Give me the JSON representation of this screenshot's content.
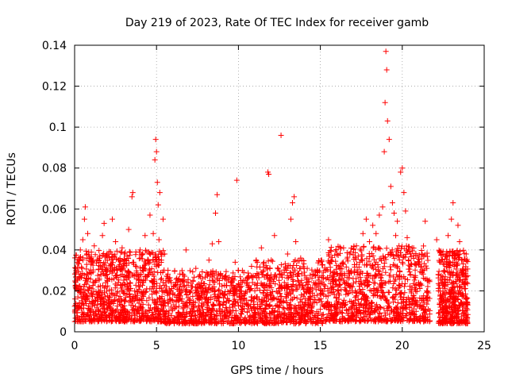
{
  "chart_data": {
    "type": "scatter",
    "title": "Day 219 of 2023, Rate Of TEC Index for receiver gamb",
    "xlabel": "GPS time / hours",
    "ylabel": "ROTI / TECUs",
    "xlim": [
      0,
      25
    ],
    "ylim": [
      0,
      0.14
    ],
    "xticks": [
      0,
      5,
      10,
      15,
      20,
      25
    ],
    "xtick_labels": [
      "0",
      "5",
      "10",
      "15",
      "20",
      "25"
    ],
    "yticks": [
      0,
      0.02,
      0.04,
      0.06,
      0.08,
      0.1,
      0.12,
      0.14
    ],
    "ytick_labels": [
      "0",
      "0.02",
      "0.04",
      "0.06",
      "0.08",
      "0.1",
      "0.12",
      "0.14"
    ],
    "grid": true,
    "marker": "+",
    "color": "#ff0000",
    "series": [
      {
        "name": "ROTI",
        "points": [
          [
            0.05,
            0.013
          ],
          [
            0.1,
            0.021
          ],
          [
            0.15,
            0.034
          ],
          [
            0.2,
            0.017
          ],
          [
            0.25,
            0.012
          ],
          [
            0.3,
            0.027
          ],
          [
            0.35,
            0.04
          ],
          [
            0.4,
            0.019
          ],
          [
            0.45,
            0.031
          ],
          [
            0.5,
            0.045
          ],
          [
            0.55,
            0.022
          ],
          [
            0.6,
            0.055
          ],
          [
            0.65,
            0.061
          ],
          [
            0.7,
            0.016
          ],
          [
            0.75,
            0.038
          ],
          [
            0.8,
            0.048
          ],
          [
            0.85,
            0.02
          ],
          [
            0.9,
            0.029
          ],
          [
            1.0,
            0.033
          ],
          [
            1.1,
            0.018
          ],
          [
            1.2,
            0.042
          ],
          [
            1.3,
            0.025
          ],
          [
            1.4,
            0.015
          ],
          [
            1.5,
            0.036
          ],
          [
            1.6,
            0.028
          ],
          [
            1.7,
            0.047
          ],
          [
            1.8,
            0.053
          ],
          [
            1.9,
            0.022
          ],
          [
            2.0,
            0.03
          ],
          [
            2.1,
            0.017
          ],
          [
            2.2,
            0.039
          ],
          [
            2.3,
            0.055
          ],
          [
            2.4,
            0.026
          ],
          [
            2.5,
            0.044
          ],
          [
            2.6,
            0.019
          ],
          [
            2.7,
            0.032
          ],
          [
            2.8,
            0.023
          ],
          [
            2.9,
            0.041
          ],
          [
            3.0,
            0.027
          ],
          [
            3.1,
            0.015
          ],
          [
            3.2,
            0.037
          ],
          [
            3.3,
            0.05
          ],
          [
            3.4,
            0.021
          ],
          [
            3.5,
            0.066
          ],
          [
            3.55,
            0.068
          ],
          [
            3.6,
            0.034
          ],
          [
            3.7,
            0.018
          ],
          [
            3.8,
            0.028
          ],
          [
            3.9,
            0.024
          ],
          [
            4.0,
            0.04
          ],
          [
            4.1,
            0.016
          ],
          [
            4.2,
            0.03
          ],
          [
            4.3,
            0.047
          ],
          [
            4.4,
            0.021
          ],
          [
            4.5,
            0.035
          ],
          [
            4.6,
            0.057
          ],
          [
            4.7,
            0.025
          ],
          [
            4.8,
            0.048
          ],
          [
            4.9,
            0.084
          ],
          [
            4.95,
            0.094
          ],
          [
            5.0,
            0.088
          ],
          [
            5.05,
            0.073
          ],
          [
            5.1,
            0.062
          ],
          [
            5.15,
            0.045
          ],
          [
            5.2,
            0.068
          ],
          [
            5.3,
            0.035
          ],
          [
            5.4,
            0.055
          ],
          [
            5.5,
            0.038
          ],
          [
            5.6,
            0.022
          ],
          [
            5.7,
            0.03
          ],
          [
            5.8,
            0.016
          ],
          [
            5.9,
            0.024
          ],
          [
            6.0,
            0.019
          ],
          [
            6.2,
            0.012
          ],
          [
            6.4,
            0.018
          ],
          [
            6.6,
            0.025
          ],
          [
            6.8,
            0.04
          ],
          [
            7.0,
            0.014
          ],
          [
            7.2,
            0.022
          ],
          [
            7.4,
            0.031
          ],
          [
            7.6,
            0.017
          ],
          [
            7.8,
            0.026
          ],
          [
            8.0,
            0.02
          ],
          [
            8.2,
            0.035
          ],
          [
            8.4,
            0.043
          ],
          [
            8.6,
            0.058
          ],
          [
            8.7,
            0.067
          ],
          [
            8.8,
            0.044
          ],
          [
            8.9,
            0.028
          ],
          [
            9.0,
            0.019
          ],
          [
            9.2,
            0.027
          ],
          [
            9.4,
            0.015
          ],
          [
            9.6,
            0.022
          ],
          [
            9.8,
            0.034
          ],
          [
            9.9,
            0.074
          ],
          [
            10.0,
            0.03
          ],
          [
            10.2,
            0.018
          ],
          [
            10.4,
            0.025
          ],
          [
            10.6,
            0.013
          ],
          [
            10.8,
            0.032
          ],
          [
            11.0,
            0.02
          ],
          [
            11.2,
            0.028
          ],
          [
            11.4,
            0.041
          ],
          [
            11.6,
            0.023
          ],
          [
            11.8,
            0.078
          ],
          [
            11.85,
            0.077
          ],
          [
            12.0,
            0.035
          ],
          [
            12.2,
            0.047
          ],
          [
            12.4,
            0.019
          ],
          [
            12.6,
            0.096
          ],
          [
            12.8,
            0.029
          ],
          [
            13.0,
            0.038
          ],
          [
            13.2,
            0.055
          ],
          [
            13.3,
            0.063
          ],
          [
            13.4,
            0.066
          ],
          [
            13.5,
            0.044
          ],
          [
            13.6,
            0.027
          ],
          [
            13.8,
            0.036
          ],
          [
            14.0,
            0.021
          ],
          [
            14.2,
            0.031
          ],
          [
            14.4,
            0.016
          ],
          [
            14.6,
            0.024
          ],
          [
            14.8,
            0.029
          ],
          [
            15.0,
            0.011
          ],
          [
            15.2,
            0.018
          ],
          [
            15.5,
            0.045
          ],
          [
            15.8,
            0.022
          ],
          [
            16.0,
            0.015
          ],
          [
            16.2,
            0.028
          ],
          [
            16.4,
            0.033
          ],
          [
            16.6,
            0.02
          ],
          [
            16.8,
            0.038
          ],
          [
            17.0,
            0.026
          ],
          [
            17.2,
            0.042
          ],
          [
            17.4,
            0.034
          ],
          [
            17.6,
            0.048
          ],
          [
            17.8,
            0.055
          ],
          [
            18.0,
            0.044
          ],
          [
            18.2,
            0.052
          ],
          [
            18.4,
            0.048
          ],
          [
            18.6,
            0.057
          ],
          [
            18.8,
            0.061
          ],
          [
            18.9,
            0.088
          ],
          [
            18.95,
            0.112
          ],
          [
            19.0,
            0.137
          ],
          [
            19.05,
            0.128
          ],
          [
            19.1,
            0.103
          ],
          [
            19.2,
            0.094
          ],
          [
            19.3,
            0.071
          ],
          [
            19.4,
            0.063
          ],
          [
            19.5,
            0.058
          ],
          [
            19.6,
            0.047
          ],
          [
            19.7,
            0.054
          ],
          [
            19.8,
            0.042
          ],
          [
            19.9,
            0.078
          ],
          [
            20.0,
            0.08
          ],
          [
            20.1,
            0.068
          ],
          [
            20.2,
            0.059
          ],
          [
            20.3,
            0.046
          ],
          [
            20.4,
            0.035
          ],
          [
            20.5,
            0.028
          ],
          [
            20.6,
            0.041
          ],
          [
            20.8,
            0.033
          ],
          [
            21.0,
            0.024
          ],
          [
            21.2,
            0.038
          ],
          [
            21.4,
            0.054
          ],
          [
            21.5,
            0.031
          ],
          [
            21.6,
            0.019
          ],
          [
            22.1,
            0.045
          ],
          [
            22.2,
            0.028
          ],
          [
            22.3,
            0.016
          ],
          [
            22.4,
            0.035
          ],
          [
            22.6,
            0.024
          ],
          [
            22.8,
            0.047
          ],
          [
            23.0,
            0.055
          ],
          [
            23.1,
            0.063
          ],
          [
            23.2,
            0.037
          ],
          [
            23.4,
            0.052
          ],
          [
            23.5,
            0.044
          ],
          [
            23.6,
            0.029
          ],
          [
            23.8,
            0.021
          ],
          [
            23.9,
            0.038
          ]
        ]
      }
    ],
    "dense_bands": [
      {
        "x_range": [
          0.0,
          5.5
        ],
        "y_range": [
          0.005,
          0.04
        ],
        "count": 900
      },
      {
        "x_range": [
          5.5,
          11.0
        ],
        "y_range": [
          0.004,
          0.03
        ],
        "count": 700
      },
      {
        "x_range": [
          11.0,
          15.5
        ],
        "y_range": [
          0.004,
          0.035
        ],
        "count": 600
      },
      {
        "x_range": [
          15.5,
          21.7
        ],
        "y_range": [
          0.005,
          0.042
        ],
        "count": 900
      },
      {
        "x_range": [
          22.2,
          24.0
        ],
        "y_range": [
          0.004,
          0.04
        ],
        "count": 450
      }
    ]
  }
}
